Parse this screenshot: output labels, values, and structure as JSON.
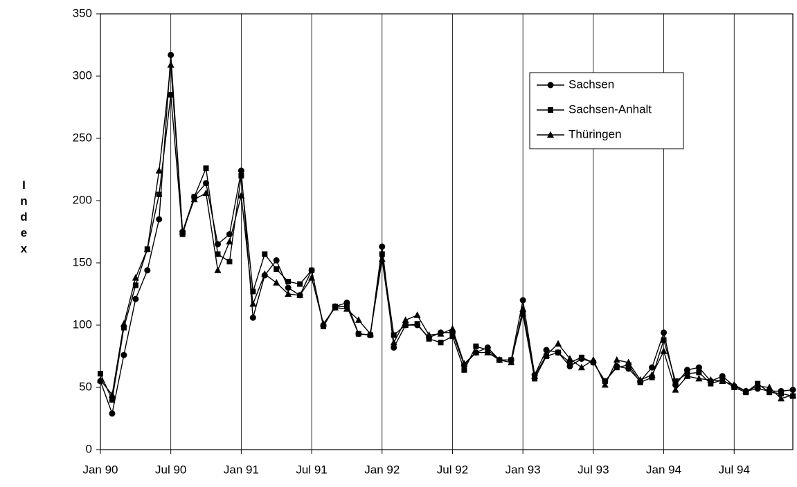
{
  "chart_data": {
    "type": "line",
    "ylabel": "Index",
    "categories": [
      "Jan 90",
      null,
      null,
      null,
      null,
      null,
      "Jul 90",
      null,
      null,
      null,
      null,
      null,
      "Jan 91",
      null,
      null,
      null,
      null,
      null,
      "Jul 91",
      null,
      null,
      null,
      null,
      null,
      "Jan 92",
      null,
      null,
      null,
      null,
      null,
      "Jul 92",
      null,
      null,
      null,
      null,
      null,
      "Jan 93",
      null,
      null,
      null,
      null,
      null,
      "Jul 93",
      null,
      null,
      null,
      null,
      null,
      "Jan 94",
      null,
      null,
      null,
      null,
      null,
      "Jul 94",
      null,
      null,
      null,
      null,
      null
    ],
    "ylim": [
      0,
      350
    ],
    "yticks": [
      0,
      50,
      100,
      150,
      200,
      250,
      300,
      350
    ],
    "grid": "x",
    "series": [
      {
        "name": "Sachsen",
        "color": "#000000",
        "marker": "circle",
        "values": [
          55,
          29,
          76,
          121,
          144,
          185,
          317,
          175,
          203,
          214,
          165,
          173,
          224,
          106,
          140,
          152,
          130,
          124,
          144,
          100,
          115,
          118,
          93,
          92,
          163,
          82,
          100,
          100,
          90,
          94,
          94,
          68,
          78,
          82,
          72,
          72,
          120,
          60,
          80,
          78,
          67,
          73,
          70,
          55,
          67,
          65,
          55,
          66,
          94,
          52,
          64,
          66,
          55,
          59,
          51,
          47,
          49,
          47,
          47,
          48
        ]
      },
      {
        "name": "Sachsen-Anhalt",
        "color": "#000000",
        "marker": "square",
        "values": [
          61,
          40,
          98,
          132,
          161,
          205,
          285,
          173,
          203,
          226,
          157,
          151,
          220,
          127,
          157,
          145,
          135,
          133,
          144,
          99,
          115,
          115,
          93,
          92,
          157,
          92,
          100,
          101,
          89,
          86,
          91,
          64,
          83,
          80,
          72,
          72,
          109,
          57,
          75,
          78,
          70,
          74,
          70,
          55,
          66,
          68,
          54,
          58,
          88,
          55,
          61,
          62,
          53,
          56,
          50,
          46,
          53,
          46,
          45,
          43
        ]
      },
      {
        "name": "Thüringen",
        "color": "#000000",
        "marker": "triangle",
        "values": [
          56,
          44,
          101,
          138,
          161,
          224,
          309,
          175,
          201,
          206,
          144,
          167,
          204,
          117,
          141,
          134,
          125,
          124,
          138,
          101,
          114,
          113,
          104,
          93,
          153,
          86,
          104,
          108,
          92,
          93,
          97,
          69,
          78,
          78,
          72,
          70,
          113,
          59,
          76,
          85,
          73,
          66,
          72,
          52,
          72,
          70,
          56,
          60,
          79,
          48,
          59,
          57,
          56,
          55,
          52,
          47,
          51,
          50,
          41,
          44
        ]
      }
    ]
  }
}
